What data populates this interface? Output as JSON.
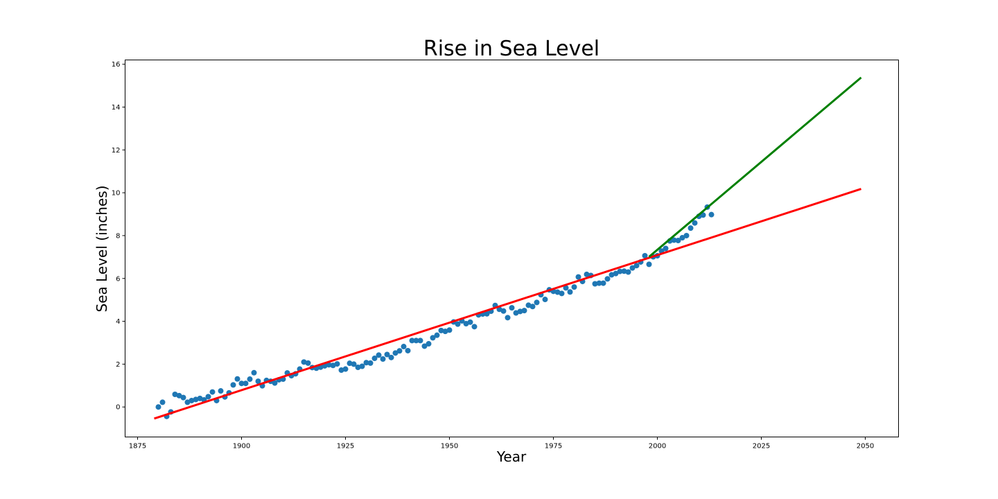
{
  "chart_data": {
    "type": "scatter",
    "title": "Rise in Sea Level",
    "xlabel": "Year",
    "ylabel": "Sea Level (inches)",
    "xlim": [
      1872,
      2058
    ],
    "ylim": [
      -1.4,
      16.2
    ],
    "xticks": [
      1875,
      1900,
      1925,
      1950,
      1975,
      2000,
      2025,
      2050
    ],
    "yticks": [
      0,
      2,
      4,
      6,
      8,
      10,
      12,
      14,
      16
    ],
    "grid": false,
    "legend": "none",
    "colors": {
      "points": "#1f77b4",
      "fit_all": "#ff0000",
      "fit_recent": "#008000"
    },
    "series": [
      {
        "type": "scatter",
        "color": "#1f77b4",
        "points": [
          [
            1880,
            0.0
          ],
          [
            1881,
            0.22
          ],
          [
            1882,
            -0.44
          ],
          [
            1883,
            -0.23
          ],
          [
            1884,
            0.59
          ],
          [
            1885,
            0.53
          ],
          [
            1886,
            0.44
          ],
          [
            1887,
            0.22
          ],
          [
            1888,
            0.3
          ],
          [
            1889,
            0.35
          ],
          [
            1890,
            0.4
          ],
          [
            1891,
            0.33
          ],
          [
            1892,
            0.48
          ],
          [
            1893,
            0.7
          ],
          [
            1894,
            0.3
          ],
          [
            1895,
            0.75
          ],
          [
            1896,
            0.47
          ],
          [
            1897,
            0.66
          ],
          [
            1898,
            1.03
          ],
          [
            1899,
            1.31
          ],
          [
            1900,
            1.1
          ],
          [
            1901,
            1.1
          ],
          [
            1902,
            1.3
          ],
          [
            1903,
            1.6
          ],
          [
            1904,
            1.2
          ],
          [
            1905,
            0.99
          ],
          [
            1906,
            1.24
          ],
          [
            1907,
            1.2
          ],
          [
            1908,
            1.12
          ],
          [
            1909,
            1.27
          ],
          [
            1910,
            1.3
          ],
          [
            1911,
            1.59
          ],
          [
            1912,
            1.46
          ],
          [
            1913,
            1.55
          ],
          [
            1914,
            1.77
          ],
          [
            1915,
            2.1
          ],
          [
            1916,
            2.05
          ],
          [
            1917,
            1.84
          ],
          [
            1918,
            1.81
          ],
          [
            1919,
            1.86
          ],
          [
            1920,
            1.92
          ],
          [
            1921,
            1.97
          ],
          [
            1922,
            1.94
          ],
          [
            1923,
            2.01
          ],
          [
            1924,
            1.72
          ],
          [
            1925,
            1.77
          ],
          [
            1926,
            2.04
          ],
          [
            1927,
            2.0
          ],
          [
            1928,
            1.85
          ],
          [
            1929,
            1.9
          ],
          [
            1930,
            2.07
          ],
          [
            1931,
            2.05
          ],
          [
            1932,
            2.27
          ],
          [
            1933,
            2.42
          ],
          [
            1934,
            2.24
          ],
          [
            1935,
            2.45
          ],
          [
            1936,
            2.31
          ],
          [
            1937,
            2.52
          ],
          [
            1938,
            2.62
          ],
          [
            1939,
            2.82
          ],
          [
            1940,
            2.63
          ],
          [
            1941,
            3.1
          ],
          [
            1942,
            3.1
          ],
          [
            1943,
            3.1
          ],
          [
            1944,
            2.84
          ],
          [
            1945,
            2.95
          ],
          [
            1946,
            3.23
          ],
          [
            1947,
            3.35
          ],
          [
            1948,
            3.57
          ],
          [
            1949,
            3.53
          ],
          [
            1950,
            3.59
          ],
          [
            1951,
            3.97
          ],
          [
            1952,
            3.87
          ],
          [
            1953,
            4.02
          ],
          [
            1954,
            3.89
          ],
          [
            1955,
            3.96
          ],
          [
            1956,
            3.75
          ],
          [
            1957,
            4.3
          ],
          [
            1958,
            4.34
          ],
          [
            1959,
            4.35
          ],
          [
            1960,
            4.47
          ],
          [
            1961,
            4.74
          ],
          [
            1962,
            4.56
          ],
          [
            1963,
            4.48
          ],
          [
            1964,
            4.17
          ],
          [
            1965,
            4.63
          ],
          [
            1966,
            4.39
          ],
          [
            1967,
            4.46
          ],
          [
            1968,
            4.5
          ],
          [
            1969,
            4.75
          ],
          [
            1970,
            4.69
          ],
          [
            1971,
            4.88
          ],
          [
            1972,
            5.24
          ],
          [
            1973,
            5.02
          ],
          [
            1974,
            5.47
          ],
          [
            1975,
            5.4
          ],
          [
            1976,
            5.36
          ],
          [
            1977,
            5.3
          ],
          [
            1978,
            5.56
          ],
          [
            1979,
            5.37
          ],
          [
            1980,
            5.6
          ],
          [
            1981,
            6.07
          ],
          [
            1982,
            5.86
          ],
          [
            1983,
            6.19
          ],
          [
            1984,
            6.14
          ],
          [
            1985,
            5.75
          ],
          [
            1986,
            5.78
          ],
          [
            1987,
            5.78
          ],
          [
            1988,
            5.98
          ],
          [
            1989,
            6.17
          ],
          [
            1990,
            6.23
          ],
          [
            1991,
            6.33
          ],
          [
            1992,
            6.34
          ],
          [
            1993,
            6.3
          ],
          [
            1994,
            6.49
          ],
          [
            1995,
            6.6
          ],
          [
            1996,
            6.77
          ],
          [
            1997,
            7.06
          ],
          [
            1998,
            6.66
          ],
          [
            1999,
            7.01
          ],
          [
            2000,
            7.06
          ],
          [
            2001,
            7.28
          ],
          [
            2002,
            7.4
          ],
          [
            2003,
            7.75
          ],
          [
            2004,
            7.79
          ],
          [
            2005,
            7.77
          ],
          [
            2006,
            7.9
          ],
          [
            2007,
            8.0
          ],
          [
            2008,
            8.35
          ],
          [
            2009,
            8.59
          ],
          [
            2010,
            8.9
          ],
          [
            2011,
            8.96
          ],
          [
            2012,
            9.33
          ],
          [
            2013,
            8.98
          ]
        ]
      },
      {
        "type": "line",
        "color": "#ff0000",
        "x": [
          1879,
          2049
        ],
        "y": [
          -0.54,
          10.18
        ]
      },
      {
        "type": "line",
        "color": "#008000",
        "x": [
          1998,
          2049
        ],
        "y": [
          7.01,
          15.38
        ]
      }
    ]
  }
}
